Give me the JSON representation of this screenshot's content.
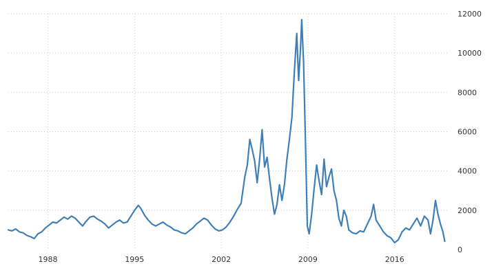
{
  "chart_data": {
    "type": "line",
    "title": "",
    "xlabel": "",
    "ylabel": "",
    "xlim": [
      1984.8,
      2020.3
    ],
    "ylim": [
      0,
      12000
    ],
    "grid": true,
    "legend": "none",
    "line_color": "#3f7fb5",
    "x_ticks": [
      {
        "value": 1988,
        "label": "1988"
      },
      {
        "value": 1995,
        "label": "1995"
      },
      {
        "value": 2002,
        "label": "2002"
      },
      {
        "value": 2009,
        "label": "2009"
      },
      {
        "value": 2016,
        "label": "2016"
      }
    ],
    "y_ticks": [
      {
        "value": 0,
        "label": "0"
      },
      {
        "value": 2000,
        "label": "2000"
      },
      {
        "value": 4000,
        "label": "4000"
      },
      {
        "value": 6000,
        "label": "6000"
      },
      {
        "value": 8000,
        "label": "8000"
      },
      {
        "value": 10000,
        "label": "10000"
      },
      {
        "value": 12000,
        "label": "12000"
      }
    ],
    "series": [
      {
        "values": [
          [
            1984.8,
            1000
          ],
          [
            1985.1,
            950
          ],
          [
            1985.4,
            1050
          ],
          [
            1985.7,
            900
          ],
          [
            1986.0,
            850
          ],
          [
            1986.3,
            720
          ],
          [
            1986.6,
            650
          ],
          [
            1986.9,
            560
          ],
          [
            1987.2,
            800
          ],
          [
            1987.5,
            900
          ],
          [
            1987.8,
            1100
          ],
          [
            1988.1,
            1250
          ],
          [
            1988.4,
            1400
          ],
          [
            1988.7,
            1350
          ],
          [
            1989.0,
            1500
          ],
          [
            1989.3,
            1650
          ],
          [
            1989.6,
            1550
          ],
          [
            1989.9,
            1700
          ],
          [
            1990.2,
            1600
          ],
          [
            1990.5,
            1400
          ],
          [
            1990.8,
            1200
          ],
          [
            1991.1,
            1450
          ],
          [
            1991.4,
            1650
          ],
          [
            1991.7,
            1700
          ],
          [
            1992.0,
            1550
          ],
          [
            1992.3,
            1450
          ],
          [
            1992.6,
            1300
          ],
          [
            1992.9,
            1100
          ],
          [
            1993.2,
            1250
          ],
          [
            1993.5,
            1400
          ],
          [
            1993.8,
            1500
          ],
          [
            1994.1,
            1350
          ],
          [
            1994.4,
            1400
          ],
          [
            1994.7,
            1700
          ],
          [
            1995.0,
            2000
          ],
          [
            1995.3,
            2250
          ],
          [
            1995.5,
            2100
          ],
          [
            1995.8,
            1750
          ],
          [
            1996.1,
            1500
          ],
          [
            1996.4,
            1300
          ],
          [
            1996.7,
            1200
          ],
          [
            1997.0,
            1300
          ],
          [
            1997.3,
            1400
          ],
          [
            1997.6,
            1250
          ],
          [
            1997.9,
            1150
          ],
          [
            1998.2,
            1000
          ],
          [
            1998.5,
            950
          ],
          [
            1998.8,
            850
          ],
          [
            1999.1,
            800
          ],
          [
            1999.4,
            950
          ],
          [
            1999.7,
            1100
          ],
          [
            2000.0,
            1300
          ],
          [
            2000.3,
            1450
          ],
          [
            2000.6,
            1600
          ],
          [
            2000.9,
            1500
          ],
          [
            2001.2,
            1250
          ],
          [
            2001.5,
            1050
          ],
          [
            2001.8,
            950
          ],
          [
            2002.1,
            1000
          ],
          [
            2002.4,
            1150
          ],
          [
            2002.7,
            1400
          ],
          [
            2003.0,
            1700
          ],
          [
            2003.3,
            2050
          ],
          [
            2003.6,
            2350
          ],
          [
            2003.9,
            3700
          ],
          [
            2004.1,
            4300
          ],
          [
            2004.3,
            5600
          ],
          [
            2004.5,
            5100
          ],
          [
            2004.7,
            4500
          ],
          [
            2004.9,
            3400
          ],
          [
            2005.1,
            4600
          ],
          [
            2005.3,
            6100
          ],
          [
            2005.5,
            4200
          ],
          [
            2005.7,
            4700
          ],
          [
            2005.9,
            3600
          ],
          [
            2006.1,
            2600
          ],
          [
            2006.3,
            1800
          ],
          [
            2006.5,
            2300
          ],
          [
            2006.7,
            3300
          ],
          [
            2006.9,
            2500
          ],
          [
            2007.1,
            3300
          ],
          [
            2007.3,
            4600
          ],
          [
            2007.5,
            5600
          ],
          [
            2007.7,
            6700
          ],
          [
            2007.9,
            9000
          ],
          [
            2008.1,
            11000
          ],
          [
            2008.25,
            8600
          ],
          [
            2008.4,
            10200
          ],
          [
            2008.5,
            11700
          ],
          [
            2008.65,
            9500
          ],
          [
            2008.8,
            5500
          ],
          [
            2008.95,
            1200
          ],
          [
            2009.1,
            800
          ],
          [
            2009.3,
            1800
          ],
          [
            2009.5,
            3100
          ],
          [
            2009.7,
            4300
          ],
          [
            2009.9,
            3500
          ],
          [
            2010.1,
            2800
          ],
          [
            2010.3,
            4600
          ],
          [
            2010.5,
            3200
          ],
          [
            2010.7,
            3700
          ],
          [
            2010.9,
            4100
          ],
          [
            2011.1,
            3000
          ],
          [
            2011.3,
            2500
          ],
          [
            2011.5,
            1600
          ],
          [
            2011.7,
            1200
          ],
          [
            2011.9,
            2000
          ],
          [
            2012.1,
            1700
          ],
          [
            2012.3,
            1000
          ],
          [
            2012.6,
            850
          ],
          [
            2012.9,
            800
          ],
          [
            2013.2,
            950
          ],
          [
            2013.5,
            900
          ],
          [
            2013.8,
            1300
          ],
          [
            2014.1,
            1700
          ],
          [
            2014.3,
            2300
          ],
          [
            2014.5,
            1500
          ],
          [
            2014.8,
            1200
          ],
          [
            2015.1,
            900
          ],
          [
            2015.4,
            700
          ],
          [
            2015.7,
            600
          ],
          [
            2016.0,
            350
          ],
          [
            2016.3,
            500
          ],
          [
            2016.6,
            900
          ],
          [
            2016.9,
            1100
          ],
          [
            2017.2,
            1000
          ],
          [
            2017.5,
            1300
          ],
          [
            2017.8,
            1600
          ],
          [
            2018.1,
            1200
          ],
          [
            2018.4,
            1700
          ],
          [
            2018.7,
            1500
          ],
          [
            2018.9,
            800
          ],
          [
            2019.1,
            1500
          ],
          [
            2019.3,
            2500
          ],
          [
            2019.5,
            1800
          ],
          [
            2019.7,
            1300
          ],
          [
            2019.9,
            900
          ],
          [
            2020.05,
            420
          ]
        ]
      }
    ]
  }
}
